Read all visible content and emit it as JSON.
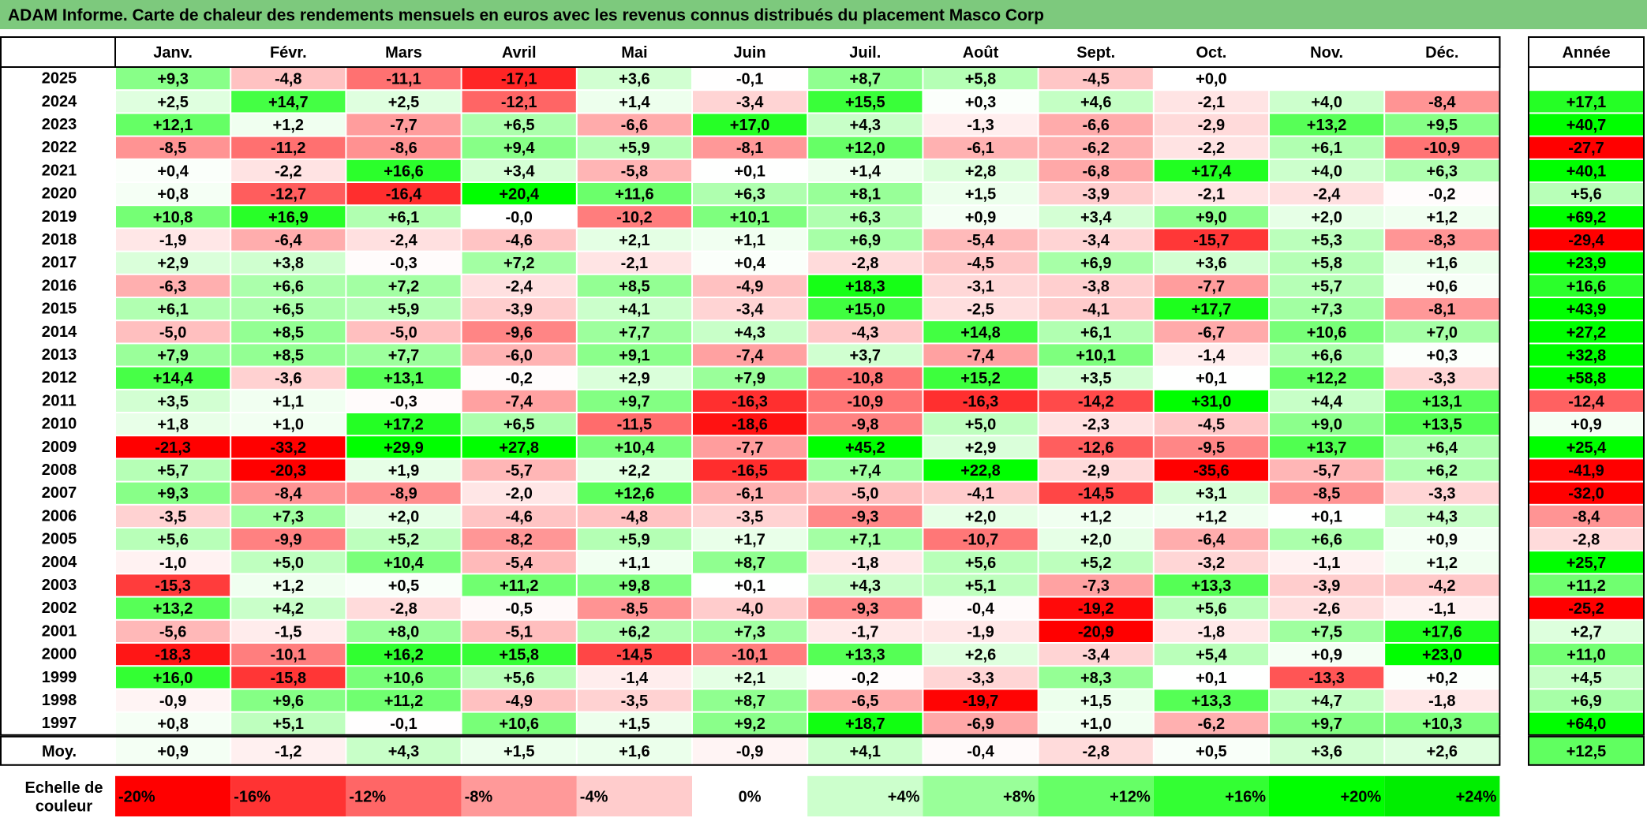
{
  "chart_data": {
    "type": "heatmap",
    "title": "ADAM Informe. Carte de chaleur des rendements mensuels en euros avec les revenus connus distribués du placement Masco Corp",
    "columns": [
      "Janv.",
      "Févr.",
      "Mars",
      "Avril",
      "Mai",
      "Juin",
      "Juil.",
      "Août",
      "Sept.",
      "Oct.",
      "Nov.",
      "Déc."
    ],
    "annual_header": "Année",
    "rows": [
      {
        "year": "2025",
        "values": [
          9.3,
          -4.8,
          -11.1,
          -17.1,
          3.6,
          -0.1,
          8.7,
          5.8,
          -4.5,
          0.0,
          null,
          null
        ],
        "annual": null
      },
      {
        "year": "2024",
        "values": [
          2.5,
          14.7,
          2.5,
          -12.1,
          1.4,
          -3.4,
          15.5,
          0.3,
          4.6,
          -2.1,
          4.0,
          -8.4
        ],
        "annual": 17.1
      },
      {
        "year": "2023",
        "values": [
          12.1,
          1.2,
          -7.7,
          6.5,
          -6.6,
          17.0,
          4.3,
          -1.3,
          -6.6,
          -2.9,
          13.2,
          9.5
        ],
        "annual": 40.7
      },
      {
        "year": "2022",
        "values": [
          -8.5,
          -11.2,
          -8.6,
          9.4,
          5.9,
          -8.1,
          12.0,
          -6.1,
          -6.2,
          -2.2,
          6.1,
          -10.9
        ],
        "annual": -27.7
      },
      {
        "year": "2021",
        "values": [
          0.4,
          -2.2,
          16.6,
          3.4,
          -5.8,
          0.1,
          1.4,
          2.8,
          -6.8,
          17.4,
          4.0,
          6.3
        ],
        "annual": 40.1
      },
      {
        "year": "2020",
        "values": [
          0.8,
          -12.7,
          -16.4,
          20.4,
          11.6,
          6.3,
          8.1,
          1.5,
          -3.9,
          -2.1,
          -2.4,
          -0.2
        ],
        "annual": 5.6
      },
      {
        "year": "2019",
        "values": [
          10.8,
          16.9,
          6.1,
          -0.0,
          -10.2,
          10.1,
          6.3,
          0.9,
          3.4,
          9.0,
          2.0,
          1.2
        ],
        "annual": 69.2
      },
      {
        "year": "2018",
        "values": [
          -1.9,
          -6.4,
          -2.4,
          -4.6,
          2.1,
          1.1,
          6.9,
          -5.4,
          -3.4,
          -15.7,
          5.3,
          -8.3
        ],
        "annual": -29.4
      },
      {
        "year": "2017",
        "values": [
          2.9,
          3.8,
          -0.3,
          7.2,
          -2.1,
          0.4,
          -2.8,
          -4.5,
          6.9,
          3.6,
          5.8,
          1.6
        ],
        "annual": 23.9
      },
      {
        "year": "2016",
        "values": [
          -6.3,
          6.6,
          7.2,
          -2.4,
          8.5,
          -4.9,
          18.3,
          -3.1,
          -3.8,
          -7.7,
          5.7,
          0.6
        ],
        "annual": 16.6
      },
      {
        "year": "2015",
        "values": [
          6.1,
          6.5,
          5.9,
          -3.9,
          4.1,
          -3.4,
          15.0,
          -2.5,
          -4.1,
          17.7,
          7.3,
          -8.1
        ],
        "annual": 43.9
      },
      {
        "year": "2014",
        "values": [
          -5.0,
          8.5,
          -5.0,
          -9.6,
          7.7,
          4.3,
          -4.3,
          14.8,
          6.1,
          -6.7,
          10.6,
          7.0
        ],
        "annual": 27.2
      },
      {
        "year": "2013",
        "values": [
          7.9,
          8.5,
          7.7,
          -6.0,
          9.1,
          -7.4,
          3.7,
          -7.4,
          10.1,
          -1.4,
          6.6,
          0.3
        ],
        "annual": 32.8
      },
      {
        "year": "2012",
        "values": [
          14.4,
          -3.6,
          13.1,
          -0.2,
          2.9,
          7.9,
          -10.8,
          15.2,
          3.5,
          0.1,
          12.2,
          -3.3
        ],
        "annual": 58.8
      },
      {
        "year": "2011",
        "values": [
          3.5,
          1.1,
          -0.3,
          -7.4,
          9.7,
          -16.3,
          -10.9,
          -16.3,
          -14.2,
          31.0,
          4.4,
          13.1
        ],
        "annual": -12.4
      },
      {
        "year": "2010",
        "values": [
          1.8,
          1.0,
          17.2,
          6.5,
          -11.5,
          -18.6,
          -9.8,
          5.0,
          -2.3,
          -4.5,
          9.0,
          13.5
        ],
        "annual": 0.9
      },
      {
        "year": "2009",
        "values": [
          -21.3,
          -33.2,
          29.9,
          27.8,
          10.4,
          -7.7,
          45.2,
          2.9,
          -12.6,
          -9.5,
          13.7,
          6.4
        ],
        "annual": 25.4
      },
      {
        "year": "2008",
        "values": [
          5.7,
          -20.3,
          1.9,
          -5.7,
          2.2,
          -16.5,
          7.4,
          22.8,
          -2.9,
          -35.6,
          -5.7,
          6.2
        ],
        "annual": -41.9
      },
      {
        "year": "2007",
        "values": [
          9.3,
          -8.4,
          -8.9,
          -2.0,
          12.6,
          -6.1,
          -5.0,
          -4.1,
          -14.5,
          3.1,
          -8.5,
          -3.3
        ],
        "annual": -32.0
      },
      {
        "year": "2006",
        "values": [
          -3.5,
          7.3,
          2.0,
          -4.6,
          -4.8,
          -3.5,
          -9.3,
          2.0,
          1.2,
          1.2,
          0.1,
          4.3
        ],
        "annual": -8.4
      },
      {
        "year": "2005",
        "values": [
          5.6,
          -9.9,
          5.2,
          -8.2,
          5.9,
          1.7,
          7.1,
          -10.7,
          2.0,
          -6.4,
          6.6,
          0.9
        ],
        "annual": -2.8
      },
      {
        "year": "2004",
        "values": [
          -1.0,
          5.0,
          10.4,
          -5.4,
          1.1,
          8.7,
          -1.8,
          5.6,
          5.2,
          -3.2,
          -1.1,
          1.2
        ],
        "annual": 25.7
      },
      {
        "year": "2003",
        "values": [
          -15.3,
          1.2,
          0.5,
          11.2,
          9.8,
          0.1,
          4.3,
          5.1,
          -7.3,
          13.3,
          -3.9,
          -4.2
        ],
        "annual": 11.2
      },
      {
        "year": "2002",
        "values": [
          13.2,
          4.2,
          -2.8,
          -0.5,
          -8.5,
          -4.0,
          -9.3,
          -0.4,
          -19.2,
          5.6,
          -2.6,
          -1.1
        ],
        "annual": -25.2
      },
      {
        "year": "2001",
        "values": [
          -5.6,
          -1.5,
          8.0,
          -5.1,
          6.2,
          7.3,
          -1.7,
          -1.9,
          -20.9,
          -1.8,
          7.5,
          17.6
        ],
        "annual": 2.7
      },
      {
        "year": "2000",
        "values": [
          -18.3,
          -10.1,
          16.2,
          15.8,
          -14.5,
          -10.1,
          13.3,
          2.6,
          -3.4,
          5.4,
          0.9,
          23.0
        ],
        "annual": 11.0
      },
      {
        "year": "1999",
        "values": [
          16.0,
          -15.8,
          10.6,
          5.6,
          -1.4,
          2.1,
          -0.2,
          -3.3,
          8.3,
          0.1,
          -13.3,
          0.2
        ],
        "annual": 4.5
      },
      {
        "year": "1998",
        "values": [
          -0.9,
          9.6,
          11.2,
          -4.9,
          -3.5,
          8.7,
          -6.5,
          -19.7,
          1.5,
          13.3,
          4.7,
          -1.8
        ],
        "annual": 6.9
      },
      {
        "year": "1997",
        "values": [
          0.8,
          5.1,
          -0.1,
          10.6,
          1.5,
          9.2,
          18.7,
          -6.9,
          1.0,
          -6.2,
          9.7,
          10.3
        ],
        "annual": 64.0
      }
    ],
    "average": {
      "label": "Moy.",
      "values": [
        0.9,
        -1.2,
        4.3,
        1.5,
        1.6,
        -0.9,
        4.1,
        -0.4,
        -2.8,
        0.5,
        3.6,
        2.6
      ],
      "annual": 12.5
    },
    "color_scale": {
      "label_line1": "Echelle de",
      "label_line2": "couleur",
      "stops": [
        {
          "label": "-20%",
          "value": -20,
          "color": "#ff0000"
        },
        {
          "label": "-16%",
          "value": -16,
          "color": "#ff3333"
        },
        {
          "label": "-12%",
          "value": -12,
          "color": "#ff6666"
        },
        {
          "label": "-8%",
          "value": -8,
          "color": "#ff9999"
        },
        {
          "label": "-4%",
          "value": -4,
          "color": "#ffcccc"
        },
        {
          "label": "0%",
          "value": 0,
          "color": "#ffffff"
        },
        {
          "label": "+4%",
          "value": 4,
          "color": "#ccffcc"
        },
        {
          "label": "+8%",
          "value": 8,
          "color": "#99ff99"
        },
        {
          "label": "+12%",
          "value": 12,
          "color": "#66ff66"
        },
        {
          "label": "+16%",
          "value": 16,
          "color": "#33ff33"
        },
        {
          "label": "+20%",
          "value": 20,
          "color": "#00ff00"
        },
        {
          "label": "+24%",
          "value": 24,
          "color": "#00ee00"
        }
      ]
    }
  }
}
